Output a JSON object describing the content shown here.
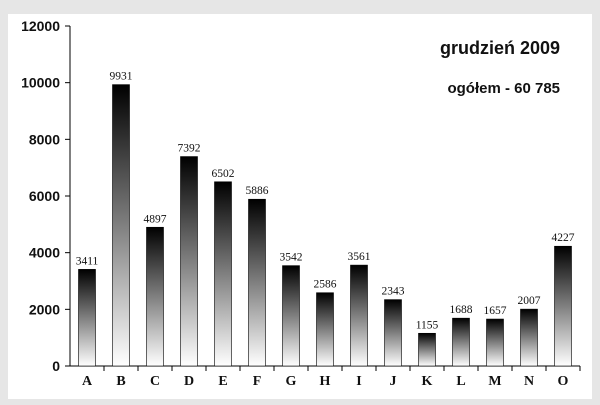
{
  "chart_data": {
    "type": "bar",
    "title": "grudzień 2009",
    "subtitle": "ogółem - 60 785",
    "categories": [
      "A",
      "B",
      "C",
      "D",
      "E",
      "F",
      "G",
      "H",
      "I",
      "J",
      "K",
      "L",
      "M",
      "N",
      "O"
    ],
    "values": [
      3411,
      9931,
      4897,
      7392,
      6502,
      5886,
      3542,
      2586,
      3561,
      2343,
      1155,
      1688,
      1657,
      2007,
      4227
    ],
    "data_labels": [
      "3411",
      "9931",
      "4897",
      "7392",
      "6502",
      "5886",
      "3542",
      "2586",
      "3561",
      "2343",
      "1155",
      "1688",
      "1657",
      "2007",
      "4227"
    ],
    "ylim": [
      0,
      12000
    ],
    "yticks": [
      "0",
      "2000",
      "4000",
      "6000",
      "8000",
      "10000",
      "12000"
    ],
    "xlabel": "",
    "ylabel": "",
    "grid": false,
    "legend": "none",
    "colors": {
      "bar_top": "#000000",
      "bar_bottom": "#ffffff",
      "axis": "#000000"
    }
  }
}
